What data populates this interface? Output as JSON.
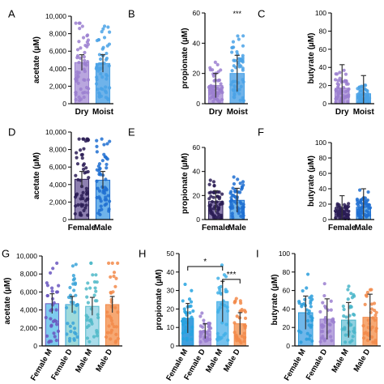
{
  "panels": [
    {
      "letter": "A",
      "ylabel": "acetate (µM)",
      "ylim": [
        0,
        10000
      ],
      "yticks": [
        "0",
        "2,000",
        "4,000",
        "6,000",
        "8,000",
        "10,000"
      ],
      "categories": [
        "Dry",
        "Moist"
      ],
      "rotate": false,
      "values": [
        4700,
        4600
      ],
      "errors": [
        900,
        1000
      ],
      "colors": [
        "#b9a6de",
        "#6fb3ea"
      ],
      "dot_colors": [
        "#9b7fd0",
        "#4aa2e6"
      ],
      "sig": [
        {
          "label": "",
          "from": 0,
          "to": 1
        }
      ]
    },
    {
      "letter": "B",
      "ylabel": "propionate (µM)",
      "ylim": [
        0,
        60
      ],
      "yticks": [
        "0",
        "20",
        "40",
        "60"
      ],
      "categories": [
        "Dry",
        "Moist"
      ],
      "rotate": false,
      "values": [
        12,
        20
      ],
      "errors": [
        8,
        12
      ],
      "colors": [
        "#b9a6de",
        "#6fb3ea"
      ],
      "dot_colors": [
        "#9b7fd0",
        "#4aa2e6"
      ],
      "sig": [
        {
          "label": "***",
          "from": 1,
          "to": 1
        }
      ]
    },
    {
      "letter": "C",
      "ylabel": "butyrate (µM)",
      "ylim": [
        0,
        100
      ],
      "yticks": [
        "0",
        "20",
        "40",
        "60",
        "80",
        "100"
      ],
      "categories": [
        "Dry",
        "Moist"
      ],
      "rotate": false,
      "values": [
        17,
        11
      ],
      "errors": [
        26,
        20
      ],
      "colors": [
        "#b9a6de",
        "#6fb3ea"
      ],
      "dot_colors": [
        "#9b7fd0",
        "#4aa2e6"
      ],
      "sig": []
    },
    {
      "letter": "D",
      "ylabel": "acetate (µM)",
      "ylim": [
        0,
        10000
      ],
      "yticks": [
        "0",
        "2,000",
        "4,000",
        "6,000",
        "8,000",
        "10,000"
      ],
      "categories": [
        "Female",
        "Male"
      ],
      "rotate": false,
      "values": [
        4600,
        4500
      ],
      "errors": [
        900,
        1000
      ],
      "colors": [
        "#8d7fb0",
        "#6fb3ea"
      ],
      "dot_colors": [
        "#2a1c55",
        "#1f6fd1"
      ],
      "sig": []
    },
    {
      "letter": "E",
      "ylabel": "propionate (µM)",
      "ylim": [
        0,
        60
      ],
      "yticks": [
        "0",
        "20",
        "40",
        "60"
      ],
      "categories": [
        "Female",
        "Male"
      ],
      "rotate": false,
      "values": [
        15,
        16
      ],
      "errors": [
        9,
        10
      ],
      "colors": [
        "#8d7fb0",
        "#6fb3ea"
      ],
      "dot_colors": [
        "#2a1c55",
        "#1f6fd1"
      ],
      "sig": []
    },
    {
      "letter": "F",
      "ylabel": "butyrate (µM)",
      "ylim": [
        0,
        100
      ],
      "yticks": [
        "0",
        "20",
        "40",
        "60",
        "80",
        "100"
      ],
      "categories": [
        "Female",
        "Male"
      ],
      "rotate": false,
      "values": [
        11,
        16
      ],
      "errors": [
        20,
        24
      ],
      "colors": [
        "#8d7fb0",
        "#6fb3ea"
      ],
      "dot_colors": [
        "#2a1c55",
        "#1f6fd1"
      ],
      "sig": []
    },
    {
      "letter": "G",
      "ylabel": "acetate (µM)",
      "ylim": [
        0,
        10000
      ],
      "yticks": [
        "0",
        "2,000",
        "4,000",
        "6,000",
        "8,000",
        "10,000"
      ],
      "categories": [
        "Female M",
        "Female D",
        "Male M",
        "Male D"
      ],
      "rotate": true,
      "values": [
        4700,
        4600,
        4400,
        4600
      ],
      "errors": [
        1100,
        900,
        1000,
        900
      ],
      "colors": [
        "#7ecbee",
        "#9fdadb",
        "#a9dcea",
        "#f6a873"
      ],
      "dot_colors": [
        "#6a57c0",
        "#3aa3d8",
        "#4fb8c8",
        "#f28a4a"
      ],
      "sig": []
    },
    {
      "letter": "H",
      "ylabel": "propionate (µM)",
      "ylim": [
        0,
        50
      ],
      "yticks": [
        "0",
        "10",
        "20",
        "30",
        "40",
        "50"
      ],
      "categories": [
        "Female M",
        "Female D",
        "Male M",
        "Male D"
      ],
      "rotate": true,
      "values": [
        15,
        8,
        24,
        12
      ],
      "errors": [
        8,
        4,
        11,
        6
      ],
      "colors": [
        "#3fa0df",
        "#b9a6de",
        "#76c2ee",
        "#f6a873"
      ],
      "dot_colors": [
        "#26a3e0",
        "#9b7fd0",
        "#41b0e8",
        "#f28a4a"
      ],
      "sig": [
        {
          "label": "*",
          "from": 0,
          "to": 2
        },
        {
          "label": "***",
          "from": 2,
          "to": 3
        }
      ]
    },
    {
      "letter": "I",
      "ylabel": "butyrate (µM)",
      "ylim": [
        0,
        100
      ],
      "yticks": [
        "0",
        "20",
        "40",
        "60",
        "80",
        "100"
      ],
      "categories": [
        "Female M",
        "Female D",
        "Male M",
        "Male D"
      ],
      "rotate": true,
      "values": [
        36,
        29,
        28,
        31
      ],
      "errors": [
        18,
        22,
        19,
        25
      ],
      "colors": [
        "#6fb7ea",
        "#b9a6de",
        "#8fd0e0",
        "#f6a873"
      ],
      "dot_colors": [
        "#2a9ddc",
        "#9b7fd0",
        "#49b5c9",
        "#f28a4a"
      ],
      "sig": []
    }
  ],
  "chart_data": [
    {
      "type": "bar",
      "title": "",
      "xlabel": "",
      "ylabel": "acetate (µM)",
      "ylim": [
        0,
        10000
      ],
      "categories": [
        "Dry",
        "Moist"
      ],
      "values": [
        4700,
        4600
      ]
    },
    {
      "type": "bar",
      "title": "",
      "xlabel": "",
      "ylabel": "propionate (µM)",
      "ylim": [
        0,
        60
      ],
      "categories": [
        "Dry",
        "Moist"
      ],
      "values": [
        12,
        20
      ]
    },
    {
      "type": "bar",
      "title": "",
      "xlabel": "",
      "ylabel": "butyrate (µM)",
      "ylim": [
        0,
        100
      ],
      "categories": [
        "Dry",
        "Moist"
      ],
      "values": [
        17,
        11
      ]
    },
    {
      "type": "bar",
      "title": "",
      "xlabel": "",
      "ylabel": "acetate (µM)",
      "ylim": [
        0,
        10000
      ],
      "categories": [
        "Female",
        "Male"
      ],
      "values": [
        4600,
        4500
      ]
    },
    {
      "type": "bar",
      "title": "",
      "xlabel": "",
      "ylabel": "propionate (µM)",
      "ylim": [
        0,
        60
      ],
      "categories": [
        "Female",
        "Male"
      ],
      "values": [
        15,
        16
      ]
    },
    {
      "type": "bar",
      "title": "",
      "xlabel": "",
      "ylabel": "butyrate (µM)",
      "ylim": [
        0,
        100
      ],
      "categories": [
        "Female",
        "Male"
      ],
      "values": [
        11,
        16
      ]
    },
    {
      "type": "bar",
      "title": "",
      "xlabel": "",
      "ylabel": "acetate (µM)",
      "ylim": [
        0,
        10000
      ],
      "categories": [
        "Female M",
        "Female D",
        "Male M",
        "Male D"
      ],
      "values": [
        4700,
        4600,
        4400,
        4600
      ]
    },
    {
      "type": "bar",
      "title": "",
      "xlabel": "",
      "ylabel": "propionate (µM)",
      "ylim": [
        0,
        50
      ],
      "categories": [
        "Female M",
        "Female D",
        "Male M",
        "Male D"
      ],
      "values": [
        15,
        8,
        24,
        12
      ]
    },
    {
      "type": "bar",
      "title": "",
      "xlabel": "",
      "ylabel": "butyrate (µM)",
      "ylim": [
        0,
        100
      ],
      "categories": [
        "Female M",
        "Female D",
        "Male M",
        "Male D"
      ],
      "values": [
        36,
        29,
        28,
        31
      ]
    }
  ]
}
